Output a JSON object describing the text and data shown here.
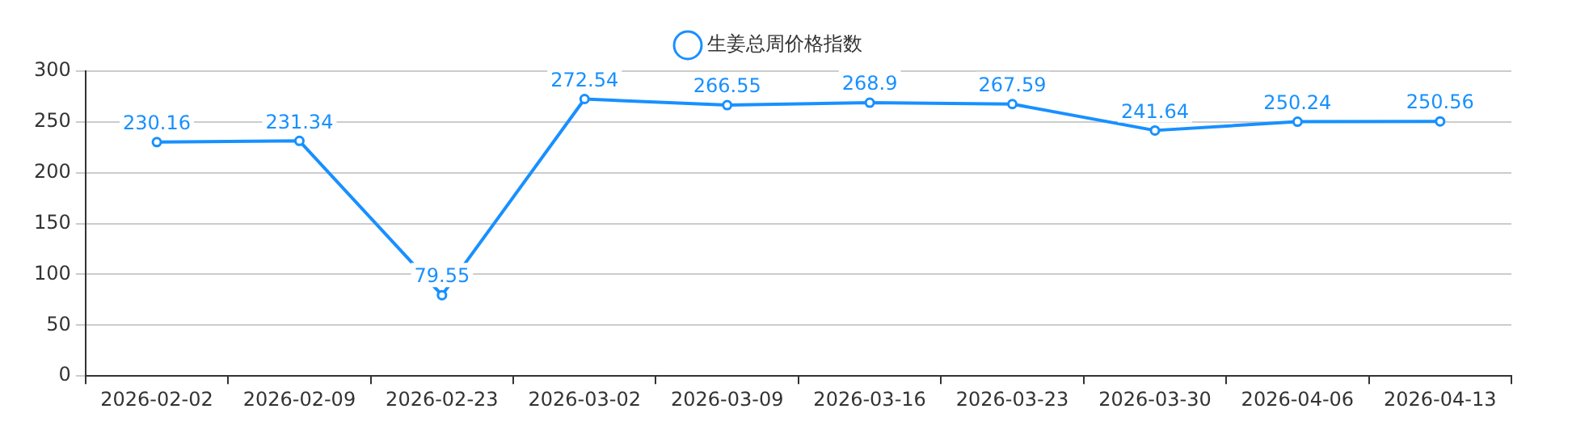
{
  "chart_data": {
    "type": "line",
    "categories": [
      "2026-02-02",
      "2026-02-09",
      "2026-02-23",
      "2026-03-02",
      "2026-03-09",
      "2026-03-16",
      "2026-03-23",
      "2026-03-30",
      "2026-04-06",
      "2026-04-13"
    ],
    "series": [
      {
        "name": "生姜总周价格指数",
        "color": "#1890ff",
        "values": [
          230.16,
          231.34,
          79.55,
          272.54,
          266.55,
          268.9,
          267.59,
          241.64,
          250.24,
          250.56
        ]
      }
    ],
    "ylim": [
      0,
      300
    ],
    "yticks": [
      0,
      50,
      100,
      150,
      200,
      250,
      300
    ],
    "grid": "y",
    "legend": "top",
    "marker": "circle",
    "data_labels": true
  }
}
